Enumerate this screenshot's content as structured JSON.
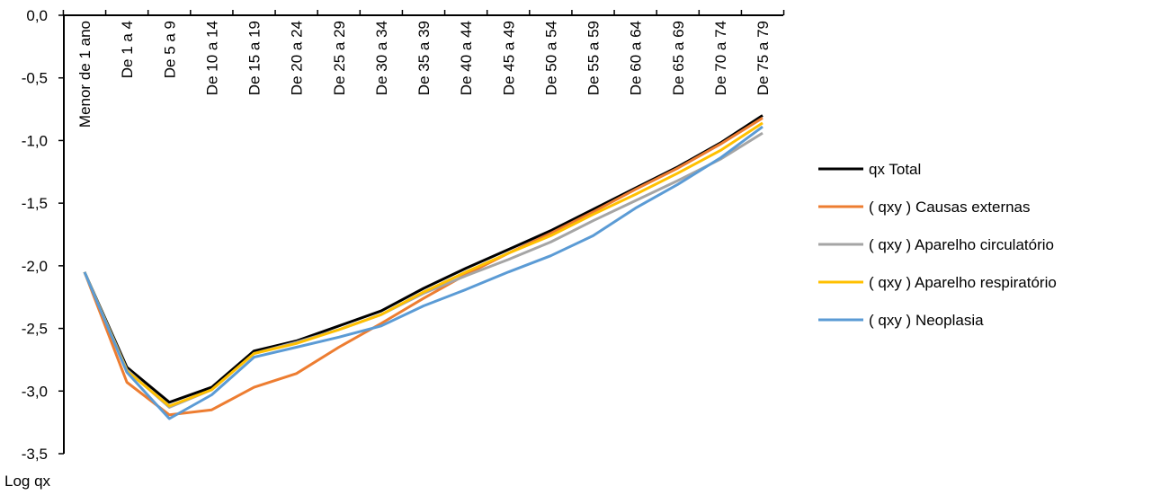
{
  "chart_data": {
    "type": "line",
    "title": "",
    "xlabel": "",
    "ylabel": "Log qx",
    "ylim": [
      -3.5,
      0.0
    ],
    "y_ticks": [
      "0,0",
      "-0,5",
      "-1,0",
      "-1,5",
      "-2,0",
      "-2,5",
      "-3,0",
      "-3,5"
    ],
    "y_tick_values": [
      0.0,
      -0.5,
      -1.0,
      -1.5,
      -2.0,
      -2.5,
      -3.0,
      -3.5
    ],
    "x_axis_position": "top",
    "categories": [
      "Menor de 1 ano",
      "De 1 a 4",
      "De 5 a 9",
      "De 10 a 14",
      "De 15 a 19",
      "De 20 a 24",
      "De 25 a 29",
      "De 30 a 34",
      "De 35 a 39",
      "De 40 a 44",
      "De 45 a 49",
      "De 50 a 54",
      "De 55 a 59",
      "De 60 a 64",
      "De 65 a 69",
      "De 70 a 74",
      "De 75 a 79"
    ],
    "grid": false,
    "legend_position": "right",
    "series": [
      {
        "name": "qx Total",
        "color": "#000000",
        "values": [
          -2.05,
          -2.81,
          -3.09,
          -2.97,
          -2.68,
          -2.6,
          -2.48,
          -2.36,
          -2.18,
          -2.02,
          -1.87,
          -1.72,
          -1.55,
          -1.38,
          -1.21,
          -1.02,
          -0.8
        ]
      },
      {
        "name": "( qxy ) Causas externas",
        "color": "#ED7D31",
        "values": [
          -2.05,
          -2.93,
          -3.19,
          -3.15,
          -2.97,
          -2.86,
          -2.65,
          -2.46,
          -2.26,
          -2.07,
          -1.9,
          -1.74,
          -1.57,
          -1.39,
          -1.22,
          -1.03,
          -0.82
        ]
      },
      {
        "name": "( qxy ) Aparelho  circulatório",
        "color": "#A5A5A5",
        "values": [
          -2.05,
          -2.83,
          -3.13,
          -2.99,
          -2.7,
          -2.61,
          -2.51,
          -2.39,
          -2.22,
          -2.08,
          -1.95,
          -1.81,
          -1.64,
          -1.48,
          -1.32,
          -1.15,
          -0.94
        ]
      },
      {
        "name": "( qxy ) Aparelho respiratório",
        "color": "#FFC000",
        "values": [
          -2.05,
          -2.84,
          -3.12,
          -2.99,
          -2.7,
          -2.62,
          -2.51,
          -2.39,
          -2.21,
          -2.05,
          -1.9,
          -1.76,
          -1.59,
          -1.43,
          -1.26,
          -1.08,
          -0.86
        ]
      },
      {
        "name": "( qxy ) Neoplasia",
        "color": "#5B9BD5",
        "values": [
          -2.05,
          -2.85,
          -3.22,
          -3.03,
          -2.73,
          -2.65,
          -2.57,
          -2.48,
          -2.32,
          -2.19,
          -2.05,
          -1.92,
          -1.76,
          -1.54,
          -1.35,
          -1.14,
          -0.89
        ]
      }
    ]
  }
}
